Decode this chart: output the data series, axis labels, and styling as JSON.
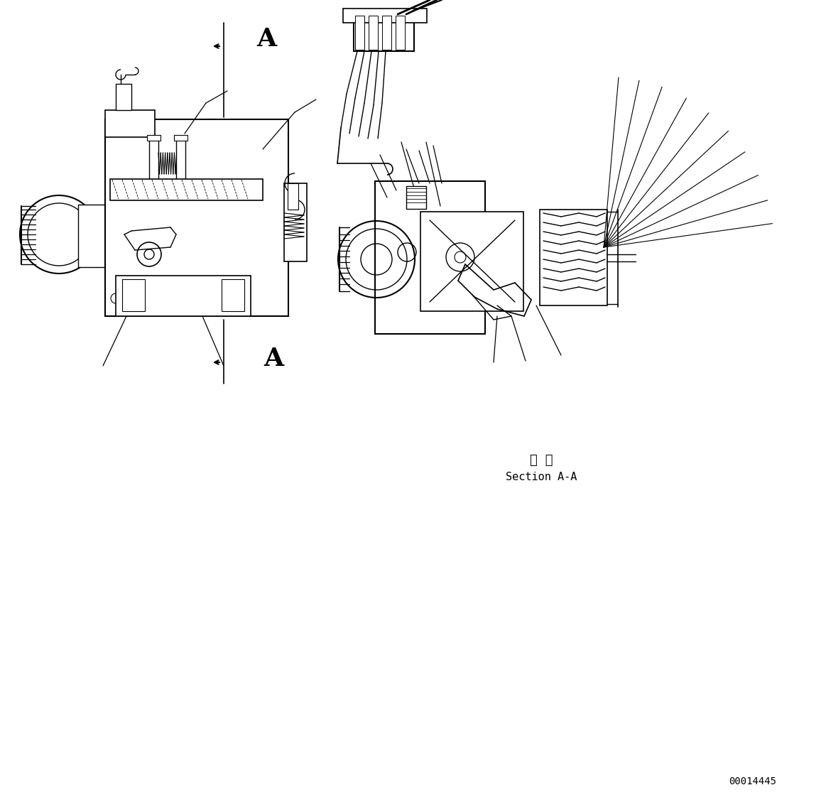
{
  "bg_color": "#ffffff",
  "line_color": "#000000",
  "fig_width": 11.63,
  "fig_height": 11.43,
  "section_label_chinese": "断 面",
  "section_label_english": "Section A-A",
  "part_number": "00014445",
  "label_A": "A",
  "dpi": 100
}
